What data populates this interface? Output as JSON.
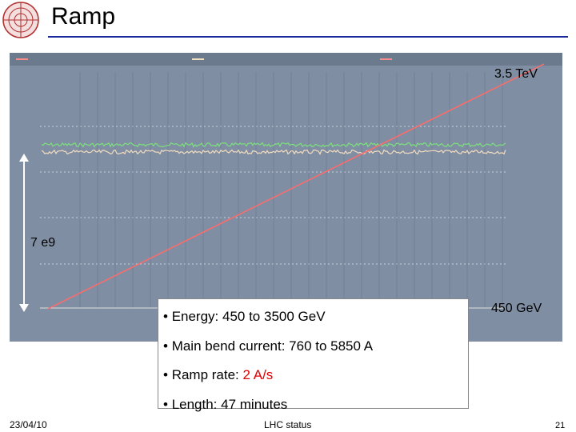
{
  "header": {
    "title": "Ramp"
  },
  "chart_annotations": {
    "top_energy": "3.5 TeV",
    "intensity": "7 e9",
    "injection_energy": "450 GeV"
  },
  "bullets": [
    {
      "text": "Energy:  450 to 3500 GeV"
    },
    {
      "text": "Main bend current: 760 to 5850 A"
    },
    {
      "label": "Ramp rate: ",
      "highlight": "2 A/s"
    },
    {
      "text": "Length: 47 minutes"
    }
  ],
  "footer": {
    "date": "23/04/10",
    "center": "LHC status",
    "page": "21"
  }
}
